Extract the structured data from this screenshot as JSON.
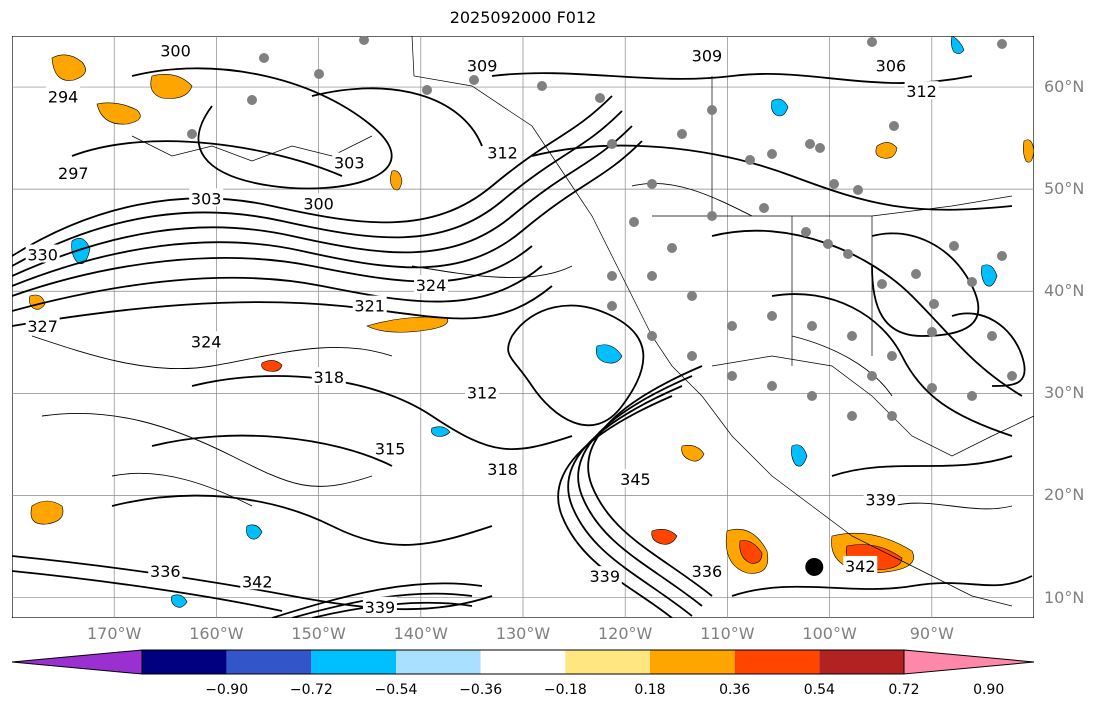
{
  "title": "2025092000 F012",
  "map": {
    "lon_range": [
      -180,
      -80
    ],
    "lat_range": [
      8,
      65
    ],
    "lat_labels": [
      {
        "value": 60,
        "text": "60°N"
      },
      {
        "value": 50,
        "text": "50°N"
      },
      {
        "value": 40,
        "text": "40°N"
      },
      {
        "value": 30,
        "text": "30°N"
      },
      {
        "value": 20,
        "text": "20°N"
      },
      {
        "value": 10,
        "text": "10°N"
      }
    ],
    "lon_labels": [
      {
        "value": -170,
        "text": "170°W"
      },
      {
        "value": -160,
        "text": "160°W"
      },
      {
        "value": -150,
        "text": "150°W"
      },
      {
        "value": -140,
        "text": "140°W"
      },
      {
        "value": -130,
        "text": "130°W"
      },
      {
        "value": -120,
        "text": "120°W"
      },
      {
        "value": -110,
        "text": "110°W"
      },
      {
        "value": -100,
        "text": "100°W"
      },
      {
        "value": -90,
        "text": "90°W"
      }
    ],
    "contour_labels": [
      {
        "text": "300",
        "lon": -164,
        "lat": 63.5
      },
      {
        "text": "294",
        "lon": -175,
        "lat": 59
      },
      {
        "text": "297",
        "lon": -174,
        "lat": 51.5
      },
      {
        "text": "303",
        "lon": -161,
        "lat": 49
      },
      {
        "text": "303",
        "lon": -147,
        "lat": 52.5
      },
      {
        "text": "300",
        "lon": -150,
        "lat": 48.5
      },
      {
        "text": "309",
        "lon": -134,
        "lat": 62
      },
      {
        "text": "312",
        "lon": -132,
        "lat": 53.5
      },
      {
        "text": "309",
        "lon": -112,
        "lat": 63
      },
      {
        "text": "306",
        "lon": -94,
        "lat": 62
      },
      {
        "text": "312",
        "lon": -91,
        "lat": 59.5
      },
      {
        "text": "321",
        "lon": -145,
        "lat": 38.5
      },
      {
        "text": "324",
        "lon": -139,
        "lat": 40.5
      },
      {
        "text": "324",
        "lon": -161,
        "lat": 35
      },
      {
        "text": "327",
        "lon": -177,
        "lat": 36.5
      },
      {
        "text": "318",
        "lon": -149,
        "lat": 31.5
      },
      {
        "text": "312",
        "lon": -134,
        "lat": 30
      },
      {
        "text": "318",
        "lon": -132,
        "lat": 22.5
      },
      {
        "text": "315",
        "lon": -143,
        "lat": 24.5
      },
      {
        "text": "345",
        "lon": -119,
        "lat": 21.5
      },
      {
        "text": "339",
        "lon": -95,
        "lat": 19.5
      },
      {
        "text": "336",
        "lon": -112,
        "lat": 12.5
      },
      {
        "text": "339",
        "lon": -122,
        "lat": 12
      },
      {
        "text": "342",
        "lon": -156,
        "lat": 11.5
      },
      {
        "text": "336",
        "lon": -165,
        "lat": 12.5
      },
      {
        "text": "339",
        "lon": -144,
        "lat": 9
      },
      {
        "text": "342",
        "lon": -97,
        "lat": 13
      },
      {
        "text": "330",
        "lon": -177,
        "lat": 43.5
      }
    ],
    "low_center": {
      "lon": -101.5,
      "lat": 13
    }
  },
  "colorbar": {
    "colors": [
      "#9b30d0",
      "#000080",
      "#3255c9",
      "#00bfff",
      "#aae0ff",
      "#ffffff",
      "#ffe680",
      "#ffa500",
      "#ff4500",
      "#b22222",
      "#ff88aa"
    ],
    "ticks": [
      "−0.90",
      "−0.72",
      "−0.54",
      "−0.36",
      "−0.18",
      "0.18",
      "0.36",
      "0.54",
      "0.72",
      "0.90"
    ]
  }
}
